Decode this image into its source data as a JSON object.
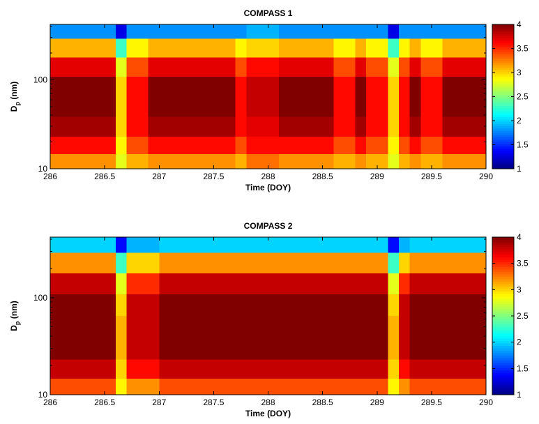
{
  "chart_data": [
    {
      "type": "heatmap",
      "title": "COMPASS 1",
      "xlabel": "Time (DOY)",
      "ylabel": "D",
      "ylabel_sub": "p",
      "ylabel_unit": " (nm)",
      "colormap": "jet",
      "log_y": true,
      "xlim": [
        286,
        290
      ],
      "xticks": [
        286,
        286.5,
        287,
        287.5,
        288,
        288.5,
        289,
        289.5,
        290
      ],
      "ylim": [
        10,
        420
      ],
      "yticks": [
        10,
        100
      ],
      "clim": [
        1,
        4
      ],
      "cticks": [
        1,
        1.5,
        2,
        2.5,
        3,
        3.5,
        4
      ],
      "x": [
        286.05,
        286.15,
        286.25,
        286.35,
        286.45,
        286.55,
        286.65,
        286.75,
        286.85,
        286.95,
        287.05,
        287.15,
        287.25,
        287.35,
        287.45,
        287.55,
        287.65,
        287.75,
        287.85,
        287.95,
        288.05,
        288.15,
        288.25,
        288.35,
        288.45,
        288.55,
        288.65,
        288.75,
        288.85,
        288.95,
        289.05,
        289.15,
        289.25,
        289.35,
        289.45,
        289.55,
        289.65,
        289.75,
        289.85,
        289.95
      ],
      "y": [
        12,
        18,
        30,
        50,
        85,
        140,
        230,
        370
      ],
      "z": [
        [
          3.2,
          3.2,
          3.2,
          3.2,
          3.2,
          3.2,
          2.8,
          3.1,
          3.1,
          3.2,
          3.2,
          3.2,
          3.2,
          3.2,
          3.2,
          3.2,
          3.2,
          3.1,
          3.3,
          3.3,
          3.3,
          3.2,
          3.2,
          3.2,
          3.2,
          3.2,
          3.1,
          3.1,
          3.2,
          3.1,
          3.1,
          2.8,
          3.1,
          3.2,
          3.1,
          3.1,
          3.2,
          3.2,
          3.2,
          3.2
        ],
        [
          3.6,
          3.6,
          3.6,
          3.6,
          3.6,
          3.6,
          2.9,
          3.4,
          3.4,
          3.6,
          3.6,
          3.6,
          3.6,
          3.6,
          3.6,
          3.6,
          3.6,
          3.4,
          3.6,
          3.6,
          3.6,
          3.6,
          3.6,
          3.6,
          3.6,
          3.6,
          3.4,
          3.4,
          3.6,
          3.4,
          3.4,
          2.9,
          3.4,
          3.6,
          3.4,
          3.4,
          3.6,
          3.6,
          3.6,
          3.6
        ],
        [
          3.9,
          3.9,
          3.9,
          3.9,
          3.9,
          3.9,
          3.0,
          3.6,
          3.6,
          3.9,
          3.9,
          3.9,
          3.9,
          3.9,
          3.9,
          3.9,
          3.9,
          3.6,
          3.7,
          3.7,
          3.7,
          3.9,
          3.9,
          3.9,
          3.9,
          3.9,
          3.6,
          3.6,
          3.9,
          3.6,
          3.6,
          3.0,
          3.6,
          3.9,
          3.6,
          3.6,
          3.9,
          3.9,
          3.9,
          3.9
        ],
        [
          4,
          4,
          4,
          4,
          4,
          4,
          3.0,
          3.6,
          3.6,
          4,
          4,
          4,
          4,
          4,
          4,
          4,
          4,
          3.6,
          3.8,
          3.8,
          3.8,
          4,
          4,
          4,
          4,
          4,
          3.6,
          3.6,
          4,
          3.6,
          3.6,
          3.0,
          3.6,
          4,
          3.6,
          3.6,
          4,
          4,
          4,
          4
        ],
        [
          4,
          4,
          4,
          4,
          4,
          4,
          3.0,
          3.6,
          3.6,
          4,
          4,
          4,
          4,
          4,
          4,
          4,
          4,
          3.6,
          3.8,
          3.8,
          3.8,
          4,
          4,
          4,
          4,
          4,
          3.6,
          3.6,
          4,
          3.6,
          3.6,
          3.0,
          3.6,
          4,
          3.6,
          3.6,
          4,
          4,
          4,
          4
        ],
        [
          3.7,
          3.7,
          3.7,
          3.7,
          3.7,
          3.7,
          2.8,
          3.4,
          3.4,
          3.7,
          3.7,
          3.7,
          3.7,
          3.7,
          3.7,
          3.7,
          3.7,
          3.4,
          3.6,
          3.6,
          3.6,
          3.7,
          3.7,
          3.7,
          3.7,
          3.7,
          3.4,
          3.4,
          3.7,
          3.4,
          3.4,
          2.8,
          3.4,
          3.7,
          3.4,
          3.4,
          3.7,
          3.7,
          3.7,
          3.7
        ],
        [
          3.1,
          3.1,
          3.1,
          3.1,
          3.1,
          3.1,
          2.3,
          2.9,
          2.9,
          3.1,
          3.1,
          3.1,
          3.1,
          3.1,
          3.1,
          3.1,
          3.1,
          2.9,
          3.0,
          3.0,
          3.0,
          3.1,
          3.1,
          3.1,
          3.1,
          3.1,
          2.9,
          2.9,
          3.1,
          2.9,
          2.9,
          2.3,
          2.9,
          3.1,
          2.9,
          2.9,
          3.1,
          3.1,
          3.1,
          3.1
        ],
        [
          1.8,
          1.8,
          1.8,
          1.8,
          1.8,
          1.8,
          1.3,
          1.8,
          1.8,
          1.8,
          1.8,
          1.8,
          1.8,
          1.8,
          1.8,
          1.8,
          1.8,
          1.8,
          1.9,
          1.9,
          1.9,
          1.8,
          1.8,
          1.8,
          1.8,
          1.8,
          1.8,
          1.8,
          1.8,
          1.8,
          1.8,
          1.3,
          1.8,
          1.8,
          1.8,
          1.8,
          1.8,
          1.8,
          1.8,
          1.8
        ]
      ]
    },
    {
      "type": "heatmap",
      "title": "COMPASS 2",
      "xlabel": "Time (DOY)",
      "ylabel": "D",
      "ylabel_sub": "p",
      "ylabel_unit": " (nm)",
      "colormap": "jet",
      "log_y": true,
      "xlim": [
        286,
        290
      ],
      "xticks": [
        286,
        286.5,
        287,
        287.5,
        288,
        288.5,
        289,
        289.5,
        290
      ],
      "ylim": [
        10,
        420
      ],
      "yticks": [
        10,
        100
      ],
      "clim": [
        1,
        4
      ],
      "cticks": [
        1,
        1.5,
        2,
        2.5,
        3,
        3.5,
        4
      ],
      "x": [
        286.05,
        286.15,
        286.25,
        286.35,
        286.45,
        286.55,
        286.65,
        286.75,
        286.85,
        286.95,
        287.05,
        287.15,
        287.25,
        287.35,
        287.45,
        287.55,
        287.65,
        287.75,
        287.85,
        287.95,
        288.05,
        288.15,
        288.25,
        288.35,
        288.45,
        288.55,
        288.65,
        288.75,
        288.85,
        288.95,
        289.05,
        289.15,
        289.25,
        289.35,
        289.45,
        289.55,
        289.65,
        289.75,
        289.85,
        289.95
      ],
      "y": [
        12,
        18,
        30,
        50,
        85,
        140,
        230,
        370
      ],
      "z": [
        [
          3.4,
          3.4,
          3.4,
          3.4,
          3.4,
          3.4,
          2.9,
          3.2,
          3.2,
          3.2,
          3.4,
          3.4,
          3.4,
          3.4,
          3.4,
          3.4,
          3.4,
          3.4,
          3.4,
          3.4,
          3.4,
          3.4,
          3.4,
          3.4,
          3.4,
          3.4,
          3.4,
          3.4,
          3.4,
          3.4,
          3.4,
          2.9,
          3.2,
          3.4,
          3.4,
          3.4,
          3.4,
          3.4,
          3.4,
          3.4
        ],
        [
          3.8,
          3.8,
          3.8,
          3.8,
          3.8,
          3.8,
          3.0,
          3.6,
          3.6,
          3.6,
          3.8,
          3.8,
          3.8,
          3.8,
          3.8,
          3.8,
          3.8,
          3.8,
          3.8,
          3.8,
          3.8,
          3.8,
          3.8,
          3.8,
          3.8,
          3.8,
          3.8,
          3.8,
          3.8,
          3.8,
          3.8,
          3.0,
          3.6,
          3.8,
          3.8,
          3.8,
          3.8,
          3.8,
          3.8,
          3.8
        ],
        [
          4,
          4,
          4,
          4,
          4,
          4,
          3.1,
          3.8,
          3.8,
          3.8,
          4,
          4,
          4,
          4,
          4,
          4,
          4,
          4,
          4,
          4,
          4,
          4,
          4,
          4,
          4,
          4,
          4,
          4,
          4,
          4,
          4,
          3.1,
          3.8,
          4,
          4,
          4,
          4,
          4,
          4,
          4
        ],
        [
          4,
          4,
          4,
          4,
          4,
          4,
          3.1,
          3.8,
          3.8,
          3.8,
          4,
          4,
          4,
          4,
          4,
          4,
          4,
          4,
          4,
          4,
          4,
          4,
          4,
          4,
          4,
          4,
          4,
          4,
          4,
          4,
          4,
          3.1,
          3.8,
          4,
          4,
          4,
          4,
          4,
          4,
          4
        ],
        [
          4,
          4,
          4,
          4,
          4,
          4,
          3.0,
          3.8,
          3.8,
          3.8,
          4,
          4,
          4,
          4,
          4,
          4,
          4,
          4,
          4,
          4,
          4,
          4,
          4,
          4,
          4,
          4,
          4,
          4,
          4,
          4,
          4,
          3.0,
          3.8,
          4,
          4,
          4,
          4,
          4,
          4,
          4
        ],
        [
          3.8,
          3.8,
          3.8,
          3.8,
          3.8,
          3.8,
          2.8,
          3.5,
          3.5,
          3.5,
          3.8,
          3.8,
          3.8,
          3.8,
          3.8,
          3.8,
          3.8,
          3.8,
          3.8,
          3.8,
          3.8,
          3.8,
          3.8,
          3.8,
          3.8,
          3.8,
          3.8,
          3.8,
          3.8,
          3.8,
          3.8,
          2.8,
          3.5,
          3.8,
          3.8,
          3.8,
          3.8,
          3.8,
          3.8,
          3.8
        ],
        [
          3.2,
          3.2,
          3.2,
          3.2,
          3.2,
          3.2,
          2.3,
          3.0,
          3.0,
          3.0,
          3.2,
          3.2,
          3.2,
          3.2,
          3.2,
          3.2,
          3.2,
          3.2,
          3.2,
          3.2,
          3.2,
          3.2,
          3.2,
          3.2,
          3.2,
          3.2,
          3.2,
          3.2,
          3.2,
          3.2,
          3.2,
          2.3,
          3.0,
          3.2,
          3.2,
          3.2,
          3.2,
          3.2,
          3.2,
          3.2
        ],
        [
          2.0,
          2.0,
          2.0,
          2.0,
          2.0,
          2.0,
          1.4,
          1.9,
          1.9,
          1.9,
          2.0,
          2.0,
          2.0,
          2.0,
          2.0,
          2.0,
          2.0,
          2.0,
          2.0,
          2.0,
          2.0,
          2.0,
          2.0,
          2.0,
          2.0,
          2.0,
          2.0,
          2.0,
          2.0,
          2.0,
          2.0,
          1.4,
          1.9,
          2.0,
          2.0,
          2.0,
          2.0,
          2.0,
          2.0,
          2.0
        ]
      ]
    }
  ]
}
